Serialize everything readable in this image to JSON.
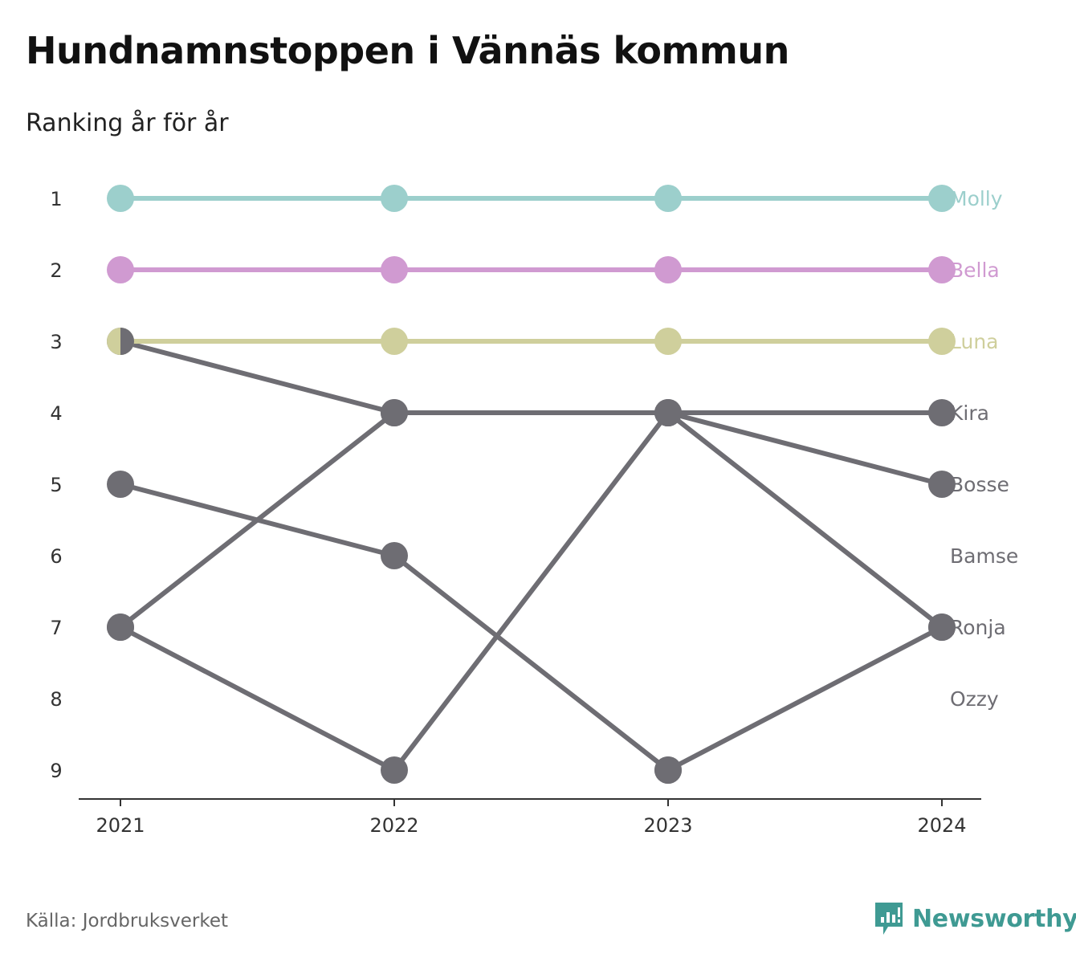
{
  "title": "Hundnamnstoppen i Vännäs kommun",
  "subtitle": "Ranking år för år",
  "source": "Källa: Jordbruksverket",
  "logo": {
    "text": "Newsworthy",
    "icon": "bar-chart-speech-icon",
    "color": "#3f9a93"
  },
  "chart_data": {
    "type": "line",
    "title": "Hundnamnstoppen i Vännäs kommun",
    "subtitle": "Ranking år för år",
    "x": [
      "2021",
      "2022",
      "2023",
      "2024"
    ],
    "y_ticks": [
      "1",
      "2",
      "3",
      "4",
      "5",
      "6",
      "7",
      "8",
      "9"
    ],
    "ylim": [
      1,
      9
    ],
    "y_inverted": true,
    "grid": false,
    "series": [
      {
        "name": "Molly",
        "values": [
          1,
          1,
          1,
          1
        ],
        "color": "#9ccfcc",
        "highlight": true
      },
      {
        "name": "Bella",
        "values": [
          2,
          2,
          2,
          2
        ],
        "color": "#d09ad1",
        "highlight": true
      },
      {
        "name": "Luna",
        "values": [
          3,
          3,
          3,
          3
        ],
        "color": "#cfcf9c",
        "highlight": true
      },
      {
        "name": "Kira",
        "values": [
          3,
          4,
          4,
          4
        ],
        "color": "#6e6d73",
        "highlight": false
      },
      {
        "name": "Bosse",
        "values": [
          7,
          4,
          4,
          5
        ],
        "color": "#6e6d73",
        "highlight": false
      },
      {
        "name": "Bamse",
        "values": [
          5,
          6,
          9,
          null
        ],
        "color": "#6e6d73",
        "highlight": false
      },
      {
        "name": "Ronja",
        "values": [
          7,
          9,
          4,
          7
        ],
        "color": "#6e6d73",
        "highlight": false
      },
      {
        "name": "Ozzy",
        "values": [
          null,
          null,
          9,
          7
        ],
        "color": "#6e6d73",
        "highlight": false
      }
    ],
    "end_labels": [
      {
        "text": "Molly",
        "rank": 1,
        "color": "#9ccfcc"
      },
      {
        "text": "Bella",
        "rank": 2,
        "color": "#d09ad1"
      },
      {
        "text": "Luna",
        "rank": 3,
        "color": "#cfcf9c"
      },
      {
        "text": "Kira",
        "rank": 4,
        "color": "#6e6d73"
      },
      {
        "text": "Bosse",
        "rank": 5,
        "color": "#6e6d73"
      },
      {
        "text": "Bamse",
        "rank": 6,
        "color": "#6e6d73"
      },
      {
        "text": "Ronja",
        "rank": 7,
        "color": "#6e6d73"
      },
      {
        "text": "Ozzy",
        "rank": 8,
        "color": "#6e6d73"
      }
    ]
  }
}
